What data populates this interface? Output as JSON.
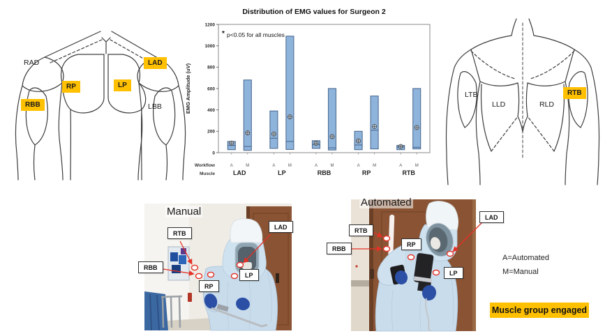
{
  "chart_data": {
    "type": "box",
    "title": "Distribution of EMG values for Surgeon 2",
    "annotation_star": "*",
    "annotation": "p<0.05 for all muscles",
    "ylabel": "EMG Amplitude (uV)",
    "x_row_labels": [
      "Workflow",
      "Muscle"
    ],
    "workflow_labels": [
      "A",
      "M"
    ],
    "ylim": [
      0,
      1200
    ],
    "ytick_step": 200,
    "grid": false,
    "legend_position": "none",
    "box_fill": "#8EB4DC",
    "box_stroke": "#4F6D92",
    "groups": [
      {
        "muscle": "LAD",
        "boxes": [
          {
            "workflow": "A",
            "q1": 28,
            "median": 68,
            "q3": 105,
            "mean": 90
          },
          {
            "workflow": "M",
            "q1": 22,
            "median": 58,
            "q3": 680,
            "mean": 185
          }
        ]
      },
      {
        "muscle": "LP",
        "boxes": [
          {
            "workflow": "A",
            "q1": 40,
            "median": 135,
            "q3": 390,
            "mean": 175
          },
          {
            "workflow": "M",
            "q1": 30,
            "median": 105,
            "q3": 1090,
            "mean": 335
          }
        ]
      },
      {
        "muscle": "RBB",
        "boxes": [
          {
            "workflow": "A",
            "q1": 40,
            "median": 75,
            "q3": 112,
            "mean": 88
          },
          {
            "workflow": "M",
            "q1": 25,
            "median": 45,
            "q3": 600,
            "mean": 150
          }
        ]
      },
      {
        "muscle": "RP",
        "boxes": [
          {
            "workflow": "A",
            "q1": 28,
            "median": 72,
            "q3": 200,
            "mean": 110
          },
          {
            "workflow": "M",
            "q1": 35,
            "median": 210,
            "q3": 530,
            "mean": 245
          }
        ]
      },
      {
        "muscle": "RTB",
        "boxes": [
          {
            "workflow": "A",
            "q1": 28,
            "median": 52,
            "q3": 68,
            "mean": 58
          },
          {
            "workflow": "M",
            "q1": 35,
            "median": 50,
            "q3": 600,
            "mean": 235
          }
        ]
      }
    ]
  },
  "front_diagram": {
    "view": "front torso",
    "labels": [
      {
        "text": "RAD",
        "highlighted": false
      },
      {
        "text": "LAD",
        "highlighted": true
      },
      {
        "text": "RP",
        "highlighted": true
      },
      {
        "text": "LP",
        "highlighted": true
      },
      {
        "text": "RBB",
        "highlighted": true
      },
      {
        "text": "LBB",
        "highlighted": false
      }
    ]
  },
  "back_diagram": {
    "view": "back torso",
    "labels": [
      {
        "text": "LTB",
        "highlighted": false
      },
      {
        "text": "LLD",
        "highlighted": false
      },
      {
        "text": "RLD",
        "highlighted": false
      },
      {
        "text": "RTB",
        "highlighted": true
      }
    ]
  },
  "photos": {
    "manual": {
      "title": "Manual",
      "labels": {
        "rtb": "RTB",
        "lad": "LAD",
        "rbb": "RBB",
        "rp": "RP",
        "lp": "LP"
      }
    },
    "automated": {
      "title": "Automated",
      "labels": {
        "rtb": "RTB",
        "rbb": "RBB",
        "rp": "RP",
        "lp": "LP",
        "lad": "LAD"
      }
    }
  },
  "legend": {
    "line1": "A=Automated",
    "line2": "M=Manual"
  },
  "engaged_note": {
    "text": "Muscle group engaged",
    "color": "#FFC000"
  }
}
